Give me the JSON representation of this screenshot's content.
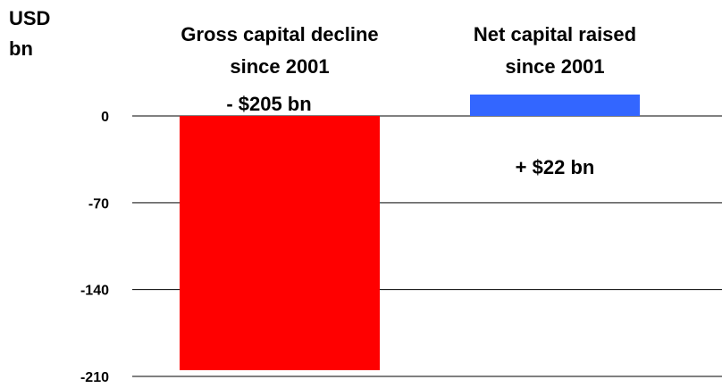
{
  "chart_data": {
    "type": "bar",
    "unit_label": [
      "USD",
      "bn"
    ],
    "yticks": [
      0,
      -70,
      -140,
      -210
    ],
    "ylim": [
      -210,
      0
    ],
    "grid": true,
    "categories": [
      "Gross capital decline since 2001",
      "Net capital raised since 2001"
    ],
    "category_labels": [
      [
        "Gross capital decline",
        "since 2001"
      ],
      [
        "Net capital raised",
        "since 2001"
      ]
    ],
    "values": [
      -205,
      22
    ],
    "data_labels": [
      "- $205 bn",
      "+ $22 bn"
    ],
    "colors": [
      "#ff0000",
      "#3366ff"
    ]
  }
}
